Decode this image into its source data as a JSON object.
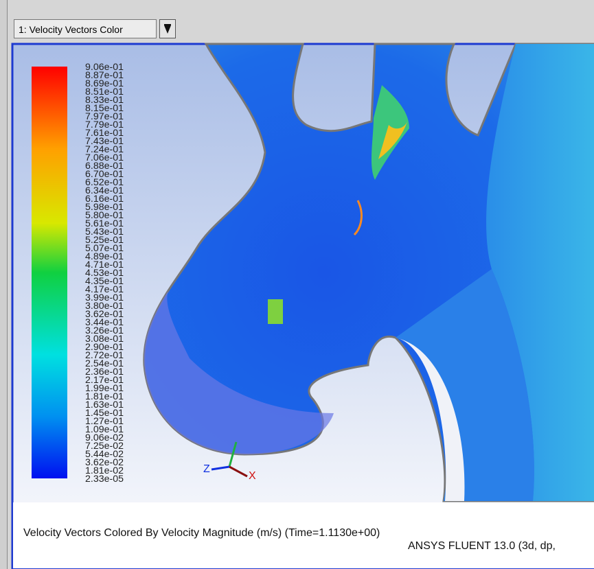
{
  "toolbar": {
    "dropdown": "1: Velocity Vectors Color"
  },
  "colorbar": {
    "labels": [
      "9.06e-01",
      "8.87e-01",
      "8.69e-01",
      "8.51e-01",
      "8.33e-01",
      "8.15e-01",
      "7.97e-01",
      "7.79e-01",
      "7.61e-01",
      "7.43e-01",
      "7.24e-01",
      "7.06e-01",
      "6.88e-01",
      "6.70e-01",
      "6.52e-01",
      "6.34e-01",
      "6.16e-01",
      "5.98e-01",
      "5.80e-01",
      "5.61e-01",
      "5.43e-01",
      "5.25e-01",
      "5.07e-01",
      "4.89e-01",
      "4.71e-01",
      "4.53e-01",
      "4.35e-01",
      "4.17e-01",
      "3.99e-01",
      "3.80e-01",
      "3.62e-01",
      "3.44e-01",
      "3.26e-01",
      "3.08e-01",
      "2.90e-01",
      "2.72e-01",
      "2.54e-01",
      "2.36e-01",
      "2.17e-01",
      "1.99e-01",
      "1.81e-01",
      "1.63e-01",
      "1.45e-01",
      "1.27e-01",
      "1.09e-01",
      "9.06e-02",
      "7.25e-02",
      "5.44e-02",
      "3.62e-02",
      "1.81e-02",
      "2.33e-05"
    ]
  },
  "axes": {
    "z": "Z",
    "x": "X"
  },
  "caption": {
    "title": "Velocity Vectors Colored By Velocity Magnitude (m/s)  (Time=1.1130e+00)",
    "software": "ANSYS FLUENT 13.0 (3d, dp,"
  }
}
